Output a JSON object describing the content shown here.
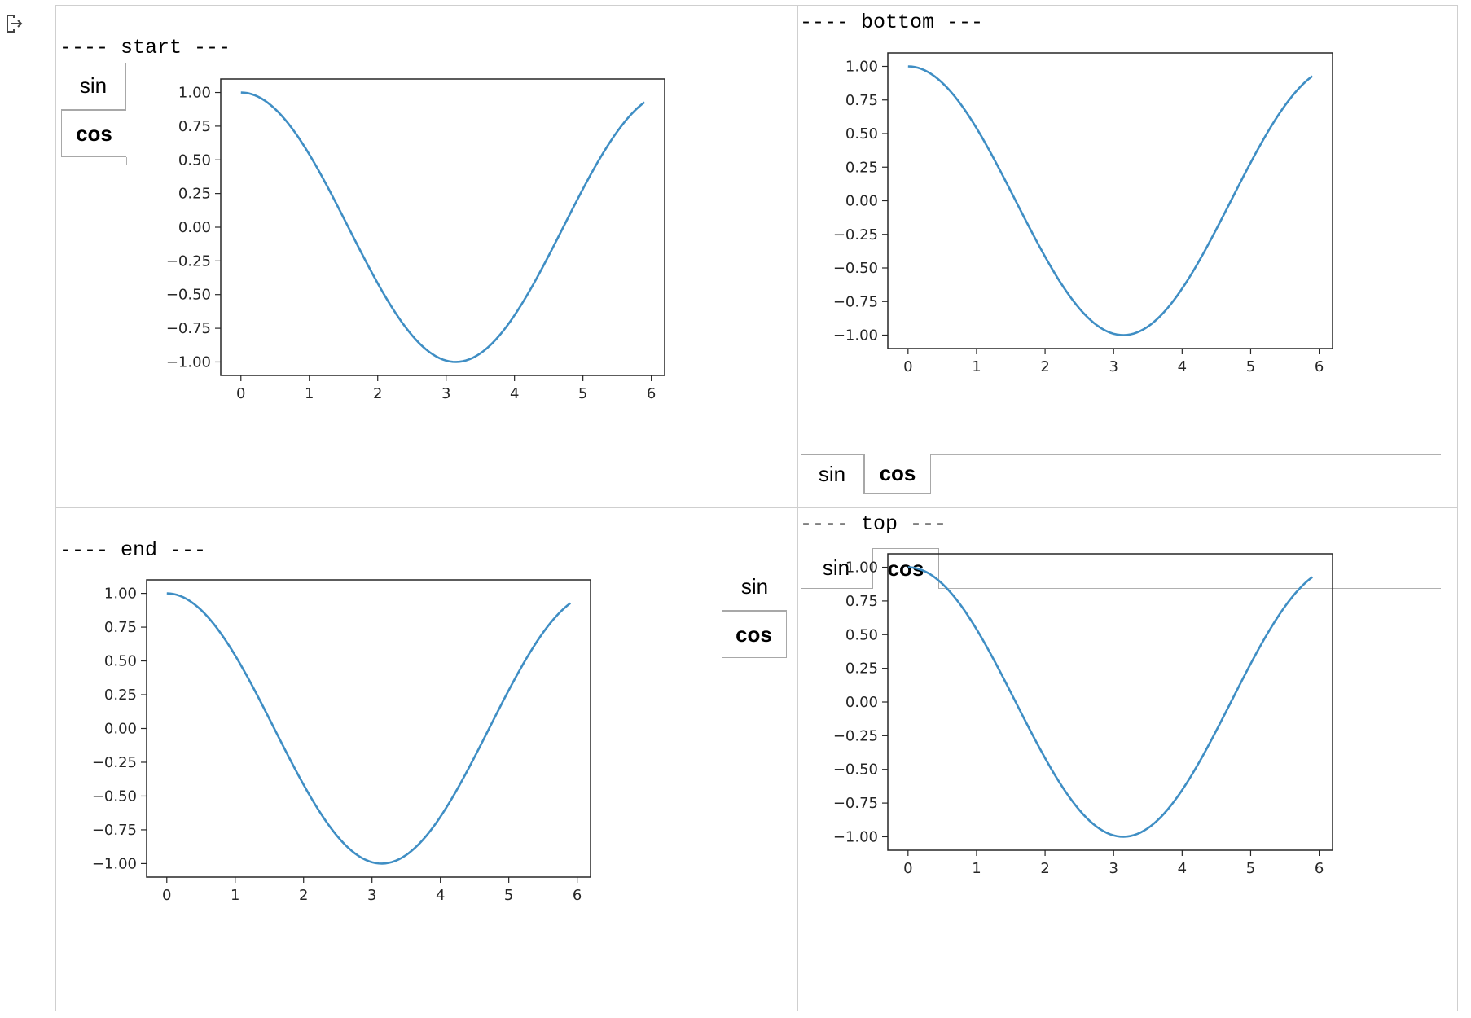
{
  "output_icon": "output-redirect-icon",
  "panels": [
    {
      "key": "start",
      "caption": "---- start ---",
      "tabs": [
        "sin",
        "cos"
      ],
      "selected": 1,
      "tab_position": "left"
    },
    {
      "key": "bottom",
      "caption": "---- bottom ---",
      "tabs": [
        "sin",
        "cos"
      ],
      "selected": 1,
      "tab_position": "bottom"
    },
    {
      "key": "end",
      "caption": "---- end ---",
      "tabs": [
        "sin",
        "cos"
      ],
      "selected": 1,
      "tab_position": "right"
    },
    {
      "key": "top",
      "caption": "---- top ---",
      "tabs": [
        "sin",
        "cos"
      ],
      "selected": 1,
      "tab_position": "top"
    }
  ],
  "colors": {
    "line": "#3f8ec4",
    "axis": "#262626",
    "border": "#cfcfcf",
    "tab_border": "#a8a8a8"
  },
  "chart_data": [
    {
      "type": "line",
      "panel": "start",
      "function": "cos",
      "x_range": [
        0,
        5.9
      ],
      "xticks": [
        "0",
        "1",
        "2",
        "3",
        "4",
        "5",
        "6"
      ],
      "yticks": [
        "1.00",
        "0.75",
        "0.50",
        "0.25",
        "0.00",
        "−0.25",
        "−0.50",
        "−0.75",
        "−1.00"
      ],
      "xlim": [
        -0.295,
        6.195
      ],
      "ylim": [
        -1.1,
        1.1
      ],
      "grid": false
    },
    {
      "type": "line",
      "panel": "bottom",
      "function": "cos",
      "x_range": [
        0,
        5.9
      ],
      "xticks": [
        "0",
        "1",
        "2",
        "3",
        "4",
        "5",
        "6"
      ],
      "yticks": [
        "1.00",
        "0.75",
        "0.50",
        "0.25",
        "0.00",
        "−0.25",
        "−0.50",
        "−0.75",
        "−1.00"
      ],
      "xlim": [
        -0.295,
        6.195
      ],
      "ylim": [
        -1.1,
        1.1
      ],
      "grid": false
    },
    {
      "type": "line",
      "panel": "end",
      "function": "cos",
      "x_range": [
        0,
        5.9
      ],
      "xticks": [
        "0",
        "1",
        "2",
        "3",
        "4",
        "5",
        "6"
      ],
      "yticks": [
        "1.00",
        "0.75",
        "0.50",
        "0.25",
        "0.00",
        "−0.25",
        "−0.50",
        "−0.75",
        "−1.00"
      ],
      "xlim": [
        -0.295,
        6.195
      ],
      "ylim": [
        -1.1,
        1.1
      ],
      "grid": false
    },
    {
      "type": "line",
      "panel": "top",
      "function": "cos",
      "x_range": [
        0,
        5.9
      ],
      "xticks": [
        "0",
        "1",
        "2",
        "3",
        "4",
        "5",
        "6"
      ],
      "yticks": [
        "1.00",
        "0.75",
        "0.50",
        "0.25",
        "0.00",
        "−0.25",
        "−0.50",
        "−0.75",
        "−1.00"
      ],
      "xlim": [
        -0.295,
        6.195
      ],
      "ylim": [
        -1.1,
        1.1
      ],
      "grid": false
    }
  ]
}
